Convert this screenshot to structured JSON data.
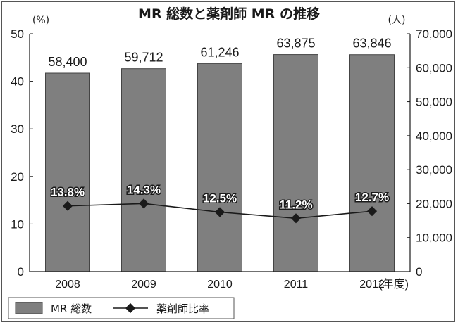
{
  "chart_data": {
    "type": "bar",
    "title": "MR 総数と薬剤師 MR の推移",
    "categories": [
      "2008",
      "2009",
      "2010",
      "2011",
      "2012"
    ],
    "x_unit": "(年度)",
    "series": [
      {
        "name": "MR 総数",
        "type": "bar",
        "axis": "right",
        "values": [
          58400,
          59712,
          61246,
          63875,
          63846
        ],
        "labels": [
          "58,400",
          "59,712",
          "61,246",
          "63,875",
          "63,846"
        ],
        "color": "#7f7f7f"
      },
      {
        "name": "薬剤師比率",
        "type": "line",
        "axis": "left",
        "values": [
          13.8,
          14.3,
          12.5,
          11.2,
          12.7
        ],
        "labels": [
          "13.8%",
          "14.3%",
          "12.5%",
          "11.2%",
          "12.7%"
        ],
        "color": "#1a1a1a"
      }
    ],
    "left_axis": {
      "unit": "(%)",
      "range": [
        0,
        50
      ],
      "ticks": [
        "0",
        "10",
        "20",
        "30",
        "40",
        "50"
      ]
    },
    "right_axis": {
      "unit": "(人)",
      "range": [
        0,
        70000
      ],
      "ticks": [
        "0",
        "10,000",
        "20,000",
        "30,000",
        "40,000",
        "50,000",
        "60,000",
        "70,000"
      ]
    },
    "grid": false,
    "legend_position": "bottom-left"
  }
}
